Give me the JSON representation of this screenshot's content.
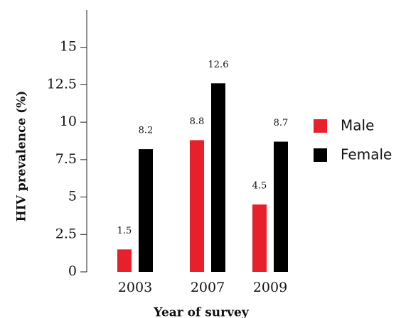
{
  "chart_data": {
    "type": "bar",
    "categories": [
      "2003",
      "2007",
      "2009"
    ],
    "series": [
      {
        "name": "Male",
        "values": [
          1.5,
          8.8,
          4.5
        ],
        "labels": [
          "1.5",
          "8.8",
          "4.5"
        ],
        "color": "#e8202c"
      },
      {
        "name": "Female",
        "values": [
          8.2,
          12.6,
          8.7
        ],
        "labels": [
          "8.2",
          "12.6",
          "8.7"
        ],
        "color": "#000000"
      }
    ],
    "xlabel": "Year of survey",
    "ylabel": "HIV prevalence (%)",
    "ylim": [
      0,
      17.5
    ],
    "yticks": [
      "0",
      "2.5",
      "5",
      "7.5",
      "10",
      "12.5",
      "15"
    ],
    "grid": false,
    "legend_position": "right"
  }
}
